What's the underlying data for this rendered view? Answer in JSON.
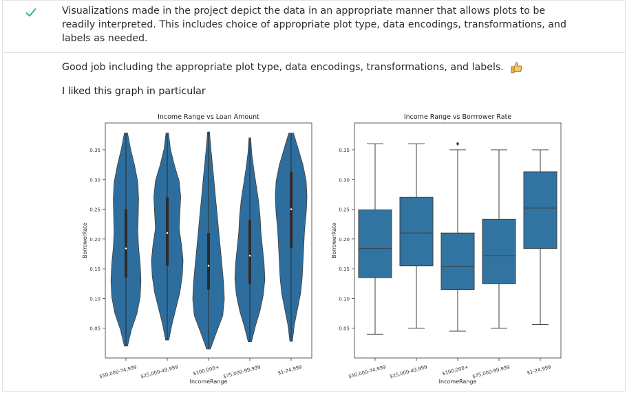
{
  "review": {
    "criterion": "Visualizations made in the project depict the data in an appropriate manner that allows plots to be readily interpreted. This includes choice of appropriate plot type, data encodings, transformations, and labels as needed.",
    "feedback": "Good job including the appropriate plot type, data encodings, transformations, and labels.",
    "liked": "I liked this graph in particular",
    "status_icon": "check-icon",
    "emoji_icon": "thumbs-up-icon",
    "accent_color": "#2eb872"
  },
  "chart_data": [
    {
      "type": "violin",
      "title": "Income Range vs Loan Amount",
      "xlabel": "IncomeRange",
      "ylabel": "BorrowerRate",
      "categories": [
        "$50,000-74,999",
        "$25,000-49,999",
        "$100,000+",
        "$75,000-99,999",
        "$1-24,999"
      ],
      "yticks": [
        "0.05",
        "0.10",
        "0.15",
        "0.20",
        "0.25",
        "0.30",
        "0.35"
      ],
      "ylim": [
        0.0,
        0.395
      ],
      "color": "#2e6e9e",
      "series": [
        {
          "min": 0.02,
          "q1": 0.135,
          "median": 0.184,
          "q3": 0.25,
          "max": 0.378
        },
        {
          "min": 0.03,
          "q1": 0.155,
          "median": 0.21,
          "q3": 0.27,
          "max": 0.378
        },
        {
          "min": 0.015,
          "q1": 0.115,
          "median": 0.155,
          "q3": 0.21,
          "max": 0.38
        },
        {
          "min": 0.027,
          "q1": 0.125,
          "median": 0.172,
          "q3": 0.232,
          "max": 0.37
        },
        {
          "min": 0.028,
          "q1": 0.185,
          "median": 0.25,
          "q3": 0.313,
          "max": 0.378
        }
      ]
    },
    {
      "type": "box",
      "title": "Income Range vs Borrrower Rate",
      "xlabel": "IncomeRange",
      "ylabel": "BorrowerRate",
      "categories": [
        "$50,000-74,999",
        "$25,000-49,999",
        "$100,000+",
        "$75,000-99,999",
        "$1-24,999"
      ],
      "yticks": [
        "0.05",
        "0.10",
        "0.15",
        "0.20",
        "0.25",
        "0.30",
        "0.35"
      ],
      "ylim": [
        0.0,
        0.395
      ],
      "color": "#3274a1",
      "series": [
        {
          "whisker_low": 0.04,
          "q1": 0.135,
          "median": 0.184,
          "q3": 0.249,
          "whisker_high": 0.36,
          "outliers": []
        },
        {
          "whisker_low": 0.05,
          "q1": 0.155,
          "median": 0.21,
          "q3": 0.27,
          "whisker_high": 0.36,
          "outliers": []
        },
        {
          "whisker_low": 0.045,
          "q1": 0.115,
          "median": 0.154,
          "q3": 0.21,
          "whisker_high": 0.35,
          "outliers": [
            0.36
          ]
        },
        {
          "whisker_low": 0.05,
          "q1": 0.125,
          "median": 0.172,
          "q3": 0.233,
          "whisker_high": 0.35,
          "outliers": []
        },
        {
          "whisker_low": 0.056,
          "q1": 0.184,
          "median": 0.252,
          "q3": 0.313,
          "whisker_high": 0.35,
          "outliers": []
        }
      ]
    }
  ]
}
